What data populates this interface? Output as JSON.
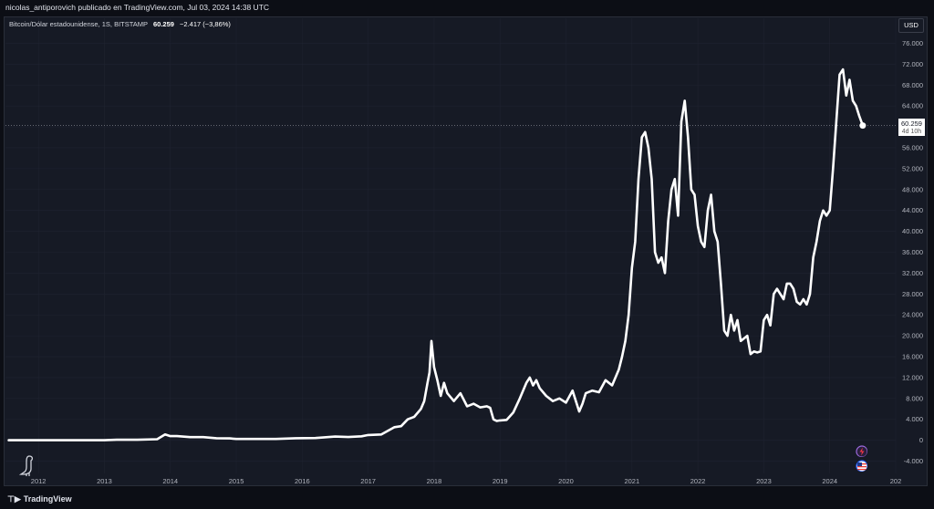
{
  "header": {
    "credit": "nicolas_antiporovich publicado en TradingView.com, Jul 03, 2024 14:38 UTC"
  },
  "legend": {
    "symbol": "Bitcoin/Dólar estadounidense, 1S, BITSTAMP",
    "last": "60.259",
    "change": "−2.417 (−3,86%)"
  },
  "currency_button": "USD",
  "price_tag": {
    "price": "60.259",
    "countdown": "4d 10h"
  },
  "footer": {
    "brand": "TradingView"
  },
  "icons": [
    "tradingview-logo-icon",
    "dino-icon",
    "lightning-event-icon",
    "us-flag-event-icon"
  ],
  "colors": {
    "background": "#161a25",
    "line": "#ffffff",
    "grid": "#1f2330",
    "axis_text": "#b2b5be"
  },
  "chart_data": {
    "type": "line",
    "title": "",
    "xlabel": "",
    "ylabel": "",
    "x_ticks": [
      "2012",
      "2013",
      "2014",
      "2015",
      "2016",
      "2017",
      "2018",
      "2019",
      "2020",
      "2021",
      "2022",
      "2023",
      "2024",
      "202"
    ],
    "y_ticks": [
      "-4.000",
      "0",
      "4.000",
      "8.000",
      "12.000",
      "16.000",
      "20.000",
      "24.000",
      "28.000",
      "32.000",
      "36.000",
      "40.000",
      "44.000",
      "48.000",
      "52.000",
      "56.000",
      "60.000",
      "64.000",
      "68.000",
      "72.000",
      "76.000"
    ],
    "ylim": [
      -6000,
      78000
    ],
    "xlim": [
      2011.5,
      2025.0
    ],
    "last_price": 60259,
    "grid": true,
    "series": [
      {
        "x": [
          2011.55,
          2012.0,
          2012.5,
          2013.0,
          2013.2,
          2013.5,
          2013.8,
          2013.92,
          2014.0,
          2014.1,
          2014.3,
          2014.5,
          2014.7,
          2014.9,
          2015.0,
          2015.3,
          2015.6,
          2015.9,
          2016.2,
          2016.5,
          2016.7,
          2016.9,
          2017.0,
          2017.2,
          2017.4,
          2017.5,
          2017.6,
          2017.7,
          2017.8,
          2017.85,
          2017.9,
          2017.93,
          2017.96,
          2018.0,
          2018.05,
          2018.1,
          2018.15,
          2018.2,
          2018.3,
          2018.4,
          2018.5,
          2018.6,
          2018.7,
          2018.8,
          2018.85,
          2018.9,
          2018.95,
          2019.0,
          2019.1,
          2019.2,
          2019.3,
          2019.4,
          2019.45,
          2019.5,
          2019.55,
          2019.6,
          2019.7,
          2019.8,
          2019.9,
          2020.0,
          2020.1,
          2020.2,
          2020.25,
          2020.3,
          2020.4,
          2020.5,
          2020.6,
          2020.7,
          2020.8,
          2020.85,
          2020.9,
          2020.95,
          2021.0,
          2021.05,
          2021.1,
          2021.15,
          2021.2,
          2021.25,
          2021.3,
          2021.35,
          2021.4,
          2021.45,
          2021.5,
          2021.55,
          2021.6,
          2021.65,
          2021.7,
          2021.75,
          2021.8,
          2021.85,
          2021.9,
          2021.95,
          2022.0,
          2022.05,
          2022.1,
          2022.15,
          2022.2,
          2022.25,
          2022.3,
          2022.35,
          2022.4,
          2022.45,
          2022.5,
          2022.55,
          2022.6,
          2022.65,
          2022.7,
          2022.75,
          2022.8,
          2022.85,
          2022.9,
          2022.95,
          2023.0,
          2023.05,
          2023.1,
          2023.15,
          2023.2,
          2023.25,
          2023.3,
          2023.35,
          2023.4,
          2023.45,
          2023.5,
          2023.55,
          2023.6,
          2023.65,
          2023.7,
          2023.75,
          2023.8,
          2023.85,
          2023.9,
          2023.95,
          2024.0,
          2024.05,
          2024.1,
          2024.15,
          2024.2,
          2024.25,
          2024.3,
          2024.35,
          2024.4,
          2024.45,
          2024.5
        ],
        "values": [
          5,
          6,
          8,
          15,
          120,
          100,
          200,
          1100,
          800,
          800,
          600,
          600,
          400,
          350,
          250,
          260,
          250,
          400,
          420,
          700,
          620,
          750,
          1000,
          1100,
          2500,
          2700,
          4000,
          4500,
          6000,
          7500,
          11000,
          13000,
          19000,
          14000,
          11500,
          8500,
          11000,
          9000,
          7500,
          9000,
          6500,
          7000,
          6300,
          6500,
          6200,
          4000,
          3700,
          3800,
          3900,
          5300,
          8000,
          11000,
          12000,
          10500,
          11500,
          10000,
          8500,
          7500,
          8000,
          7200,
          9500,
          5500,
          7000,
          9000,
          9500,
          9200,
          11500,
          10500,
          13500,
          16000,
          19000,
          24000,
          33000,
          38000,
          50000,
          58000,
          59000,
          56000,
          50000,
          36000,
          34000,
          35000,
          32000,
          42000,
          48000,
          50000,
          43000,
          61000,
          65000,
          58000,
          48000,
          47000,
          41000,
          38000,
          37000,
          44000,
          47000,
          40000,
          38000,
          30000,
          21000,
          20000,
          24000,
          21000,
          23000,
          19000,
          19500,
          20000,
          16500,
          17000,
          16800,
          17000,
          23000,
          24000,
          22000,
          28000,
          29000,
          28000,
          27000,
          30000,
          30000,
          29000,
          26500,
          26000,
          27000,
          26000,
          28000,
          35000,
          38000,
          42000,
          44000,
          43000,
          44000,
          52000,
          61000,
          70000,
          71000,
          66000,
          69000,
          65000,
          64000,
          62000,
          60259
        ]
      }
    ]
  }
}
